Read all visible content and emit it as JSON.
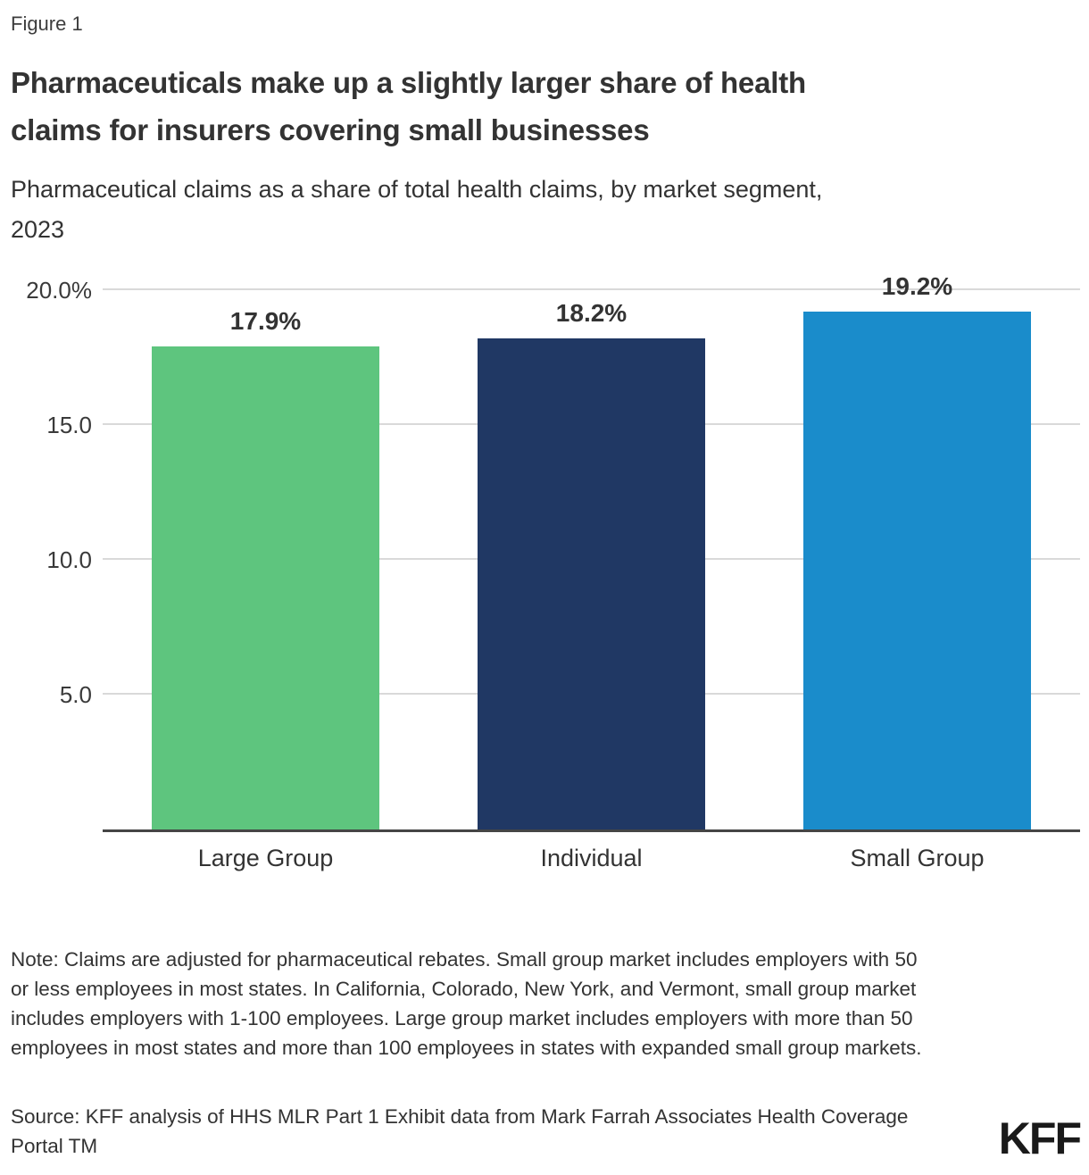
{
  "figure_label": "Figure 1",
  "title": {
    "line1": "Pharmaceuticals make up a slightly larger share of health",
    "line2": "claims for insurers covering small businesses"
  },
  "subtitle": {
    "line1": "Pharmaceutical claims as a share of total health claims, by market segment,",
    "line2": "2023"
  },
  "chart_data": {
    "type": "bar",
    "title": "Pharmaceutical claims as a share of total health claims, by market segment, 2023",
    "categories": [
      "Large Group",
      "Individual",
      "Small Group"
    ],
    "values": [
      17.9,
      18.2,
      19.2
    ],
    "value_labels": [
      "17.9%",
      "18.2%",
      "19.2%"
    ],
    "bar_colors": [
      "#5EC57E",
      "#203864",
      "#1A8CCB"
    ],
    "xlabel": "",
    "ylabel": "",
    "ylim": [
      0,
      20.8
    ],
    "yticks": [
      {
        "value": 5,
        "label": "5.0"
      },
      {
        "value": 10,
        "label": "10.0"
      },
      {
        "value": 15,
        "label": "15.0"
      },
      {
        "value": 20,
        "label": "20.0%"
      }
    ],
    "grid": "horizontal-only",
    "legend": "none"
  },
  "note": "Note: Claims are adjusted for pharmaceutical rebates. Small group market includes employers with 50 or less employees in most states. In California, Colorado, New York, and Vermont, small group market includes employers with 1-100 employees. Large group market includes employers with more than 50 employees in most states and more than 100 employees in states with expanded small group markets.",
  "source": "Source: KFF analysis of HHS MLR Part 1 Exhibit data from Mark Farrah Associates Health Coverage Portal TM",
  "logo_text": "KFF",
  "colors": {
    "text": "#333333",
    "grid": "#d9d9d9",
    "axis": "#454545",
    "green": "#5EC57E",
    "navy": "#203864",
    "blue": "#1A8CCB"
  }
}
